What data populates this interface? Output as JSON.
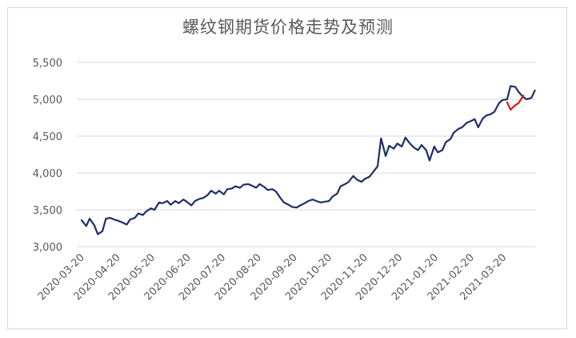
{
  "chart_data": {
    "type": "line",
    "title": "螺纹钢期货价格走势及预测",
    "xlabel": "",
    "ylabel": "",
    "ylim": [
      3000,
      5500
    ],
    "yticks": [
      "3,000",
      "3,500",
      "4,000",
      "4,500",
      "5,000",
      "5,500"
    ],
    "ytick_values": [
      3000,
      3500,
      4000,
      4500,
      5000,
      5500
    ],
    "xticks": [
      "2020-03-20",
      "2020-04-20",
      "2020-05-20",
      "2020-06-20",
      "2020-07-20",
      "2020-08-20",
      "2020-09-20",
      "2020-10-20",
      "2020-11-20",
      "2020-12-20",
      "2021-01-20",
      "2021-02-20",
      "2021-03-20"
    ],
    "grid": true,
    "series": [
      {
        "color": "#1f2e66",
        "x": [
          "2020-03-20",
          "2020-03-24",
          "2020-03-27",
          "2020-03-31",
          "2020-04-03",
          "2020-04-07",
          "2020-04-10",
          "2020-04-14",
          "2020-04-17",
          "2020-04-21",
          "2020-04-24",
          "2020-04-28",
          "2020-05-01",
          "2020-05-05",
          "2020-05-08",
          "2020-05-12",
          "2020-05-15",
          "2020-05-19",
          "2020-05-22",
          "2020-05-26",
          "2020-05-29",
          "2020-06-02",
          "2020-06-05",
          "2020-06-09",
          "2020-06-12",
          "2020-06-16",
          "2020-06-19",
          "2020-06-23",
          "2020-06-26",
          "2020-06-30",
          "2020-07-03",
          "2020-07-07",
          "2020-07-10",
          "2020-07-14",
          "2020-07-17",
          "2020-07-21",
          "2020-07-24",
          "2020-07-28",
          "2020-07-31",
          "2020-08-04",
          "2020-08-07",
          "2020-08-11",
          "2020-08-14",
          "2020-08-18",
          "2020-08-21",
          "2020-08-25",
          "2020-08-28",
          "2020-09-01",
          "2020-09-04",
          "2020-09-08",
          "2020-09-11",
          "2020-09-15",
          "2020-09-18",
          "2020-09-22",
          "2020-09-25",
          "2020-09-29",
          "2020-10-02",
          "2020-10-06",
          "2020-10-09",
          "2020-10-13",
          "2020-10-16",
          "2020-10-20",
          "2020-10-23",
          "2020-10-27",
          "2020-10-30",
          "2020-11-03",
          "2020-11-06",
          "2020-11-10",
          "2020-11-13",
          "2020-11-17",
          "2020-11-20",
          "2020-11-24",
          "2020-11-27",
          "2020-12-01",
          "2020-12-04",
          "2020-12-08",
          "2020-12-11",
          "2020-12-15",
          "2020-12-18",
          "2020-12-22",
          "2020-12-25",
          "2020-12-29",
          "2021-01-01",
          "2021-01-05",
          "2021-01-08",
          "2021-01-12",
          "2021-01-15",
          "2021-01-19",
          "2021-01-22",
          "2021-01-26",
          "2021-01-29",
          "2021-02-02",
          "2021-02-05",
          "2021-02-09",
          "2021-02-12",
          "2021-02-16",
          "2021-02-19",
          "2021-02-23",
          "2021-02-26",
          "2021-03-02",
          "2021-03-05",
          "2021-03-09",
          "2021-03-12",
          "2021-03-16",
          "2021-03-19",
          "2021-03-23",
          "2021-03-26",
          "2021-03-30",
          "2021-04-02",
          "2021-04-06",
          "2021-04-09",
          "2021-04-13",
          "2021-04-16"
        ],
        "values": [
          3360,
          3280,
          3380,
          3290,
          3170,
          3210,
          3380,
          3390,
          3370,
          3350,
          3330,
          3300,
          3370,
          3390,
          3450,
          3430,
          3480,
          3520,
          3500,
          3600,
          3590,
          3620,
          3570,
          3620,
          3590,
          3640,
          3610,
          3560,
          3620,
          3650,
          3660,
          3700,
          3760,
          3720,
          3760,
          3710,
          3780,
          3790,
          3820,
          3800,
          3840,
          3850,
          3830,
          3800,
          3850,
          3810,
          3770,
          3780,
          3750,
          3660,
          3600,
          3570,
          3540,
          3530,
          3560,
          3590,
          3620,
          3640,
          3620,
          3600,
          3610,
          3620,
          3680,
          3720,
          3820,
          3850,
          3880,
          3960,
          3910,
          3880,
          3920,
          3950,
          4010,
          4090,
          4470,
          4230,
          4370,
          4330,
          4400,
          4360,
          4480,
          4400,
          4350,
          4310,
          4380,
          4310,
          4170,
          4360,
          4280,
          4310,
          4420,
          4460,
          4550,
          4600,
          4620,
          4680,
          4700,
          4730,
          4620,
          4740,
          4780,
          4800,
          4830,
          4950,
          4990,
          5000,
          5180,
          5170,
          5100,
          5030,
          5000,
          5020,
          5120
        ]
      },
      {
        "color": "#e0161d",
        "x": [
          "2021-03-23",
          "2021-03-26",
          "2021-03-30",
          "2021-04-02",
          "2021-04-06"
        ],
        "values": [
          4960,
          4860,
          4920,
          4950,
          5050
        ]
      }
    ]
  }
}
